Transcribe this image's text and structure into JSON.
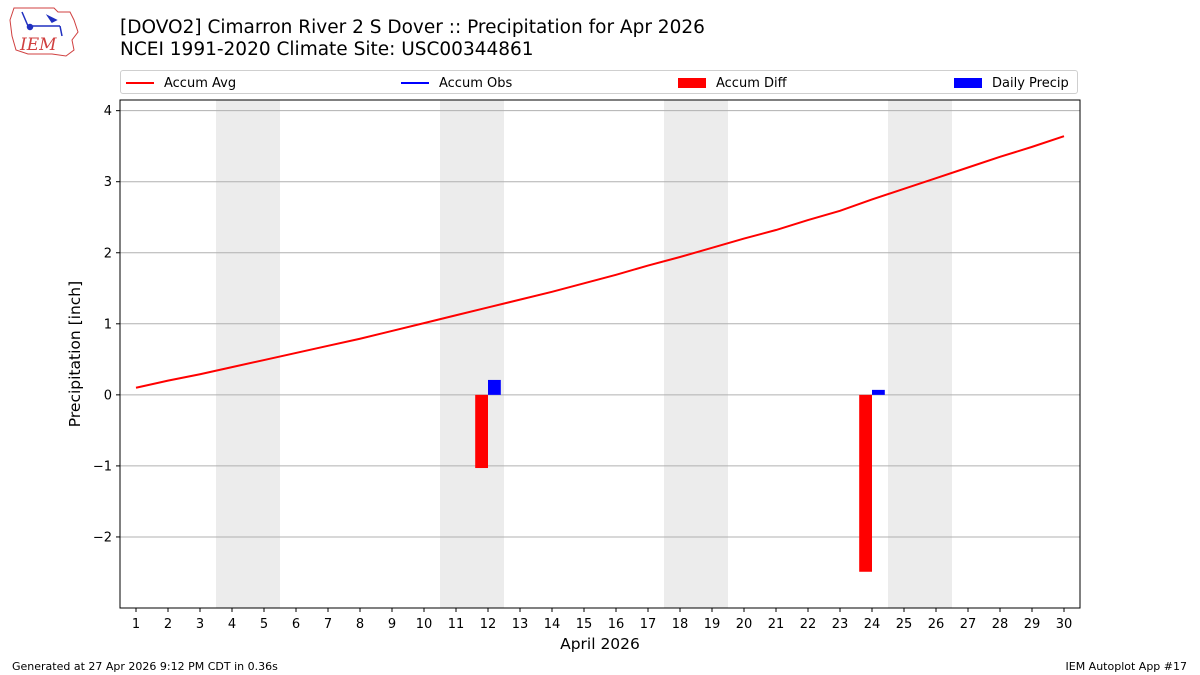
{
  "header": {
    "title_line1": "[DOVO2] Cimarron River 2 S Dover :: Precipitation for Apr 2026",
    "title_line2": "NCEI 1991-2020 Climate Site: USC00344861"
  },
  "logo": {
    "text": "IEM"
  },
  "footer": {
    "generated": "Generated at 27 Apr 2026 9:12 PM CDT in 0.36s",
    "app": "IEM Autoplot App #17"
  },
  "colors": {
    "accum_avg": "#ff0000",
    "accum_obs": "#0000ff",
    "accum_diff": "#ff0000",
    "daily_precip": "#0000ff",
    "weekend_shade": "#ececec",
    "grid": "#b0b0b0"
  },
  "chart_data": {
    "type": "bar+line",
    "title": "[DOVO2] Cimarron River 2 S Dover :: Precipitation for Apr 2026",
    "subtitle": "NCEI 1991-2020 Climate Site: USC00344861",
    "xlabel": "April 2026",
    "ylabel": "Precipitation [inch]",
    "xlim": [
      0.5,
      30.5
    ],
    "ylim": [
      -3.0,
      4.15
    ],
    "yticks": [
      4,
      3,
      2,
      1,
      0,
      -1,
      -2
    ],
    "ytick_labels": [
      "4",
      "3",
      "2",
      "1",
      "0",
      "−1",
      "−2"
    ],
    "days": [
      1,
      2,
      3,
      4,
      5,
      6,
      7,
      8,
      9,
      10,
      11,
      12,
      13,
      14,
      15,
      16,
      17,
      18,
      19,
      20,
      21,
      22,
      23,
      24,
      25,
      26,
      27,
      28,
      29,
      30
    ],
    "grid": "horizontal",
    "legend": [
      "Accum Avg",
      "Accum Obs",
      "Accum Diff",
      "Daily Precip"
    ],
    "legend_position": "top",
    "weekend_shading": [
      [
        3.5,
        5.5
      ],
      [
        10.5,
        12.5
      ],
      [
        17.5,
        19.5
      ],
      [
        24.5,
        26.5
      ]
    ],
    "series": [
      {
        "name": "Accum Avg",
        "type": "line",
        "values": [
          0.1,
          0.2,
          0.29,
          0.39,
          0.49,
          0.59,
          0.69,
          0.79,
          0.9,
          1.01,
          1.12,
          1.23,
          1.34,
          1.45,
          1.57,
          1.69,
          1.82,
          1.94,
          2.07,
          2.2,
          2.32,
          2.46,
          2.59,
          2.75,
          2.9,
          3.05,
          3.2,
          3.35,
          3.49,
          3.64
        ]
      },
      {
        "name": "Accum Obs",
        "type": "line",
        "values": []
      },
      {
        "name": "Accum Diff",
        "type": "bar",
        "points": [
          {
            "day": 12,
            "value": -1.03
          },
          {
            "day": 24,
            "value": -2.49
          }
        ]
      },
      {
        "name": "Daily Precip",
        "type": "bar",
        "points": [
          {
            "day": 12,
            "value": 0.21
          },
          {
            "day": 24,
            "value": 0.07
          }
        ]
      }
    ]
  }
}
